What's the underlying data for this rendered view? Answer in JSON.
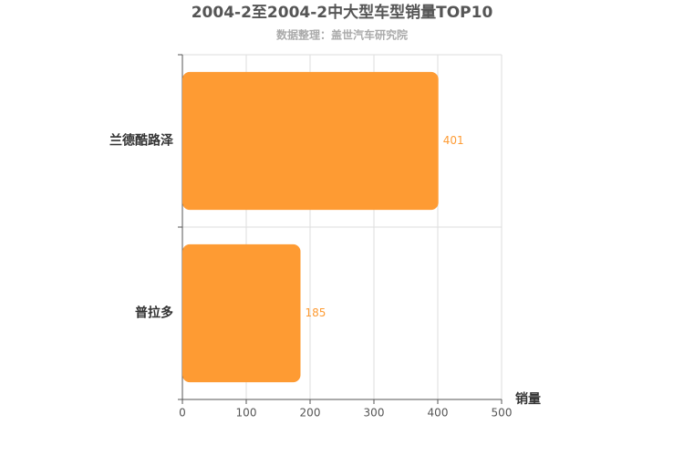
{
  "chart_data": {
    "type": "bar",
    "orientation": "horizontal",
    "title": "2004-2至2004-2中大型车型销量TOP10",
    "subtitle": "数据整理：盖世汽车研究院",
    "x_label": "销量",
    "categories": [
      "兰德酷路泽",
      "普拉多"
    ],
    "values": [
      401,
      185
    ],
    "color": "#fe9b33",
    "xlim": [
      0,
      500
    ],
    "xticks": [
      0,
      100,
      200,
      300,
      400,
      500
    ],
    "grid": true
  }
}
